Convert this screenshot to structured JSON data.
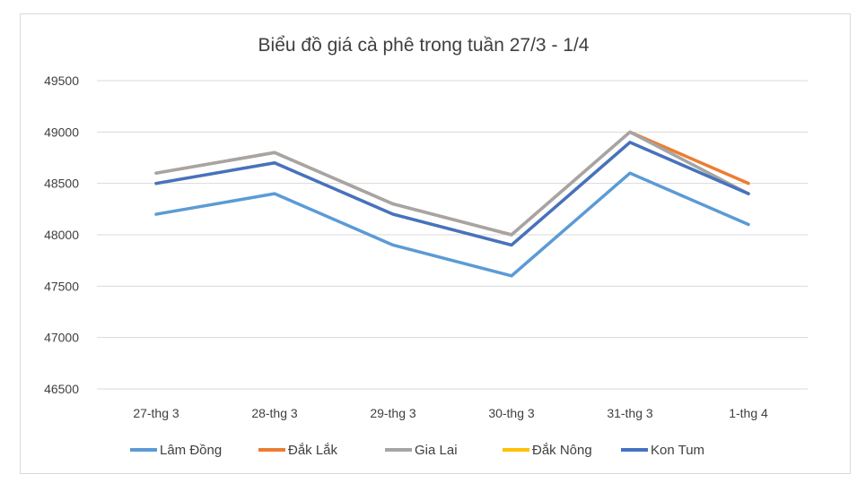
{
  "chart_data": {
    "type": "line",
    "title": "Biểu đồ giá cà phê trong tuần 27/3 - 1/4",
    "categories": [
      "27-thg 3",
      "28-thg 3",
      "29-thg 3",
      "30-thg 3",
      "31-thg 3",
      "1-thg 4"
    ],
    "ylim": [
      46500,
      49500
    ],
    "yticks": [
      46500,
      47000,
      47500,
      48000,
      48500,
      49000,
      49500
    ],
    "grid": true,
    "legend_position": "bottom",
    "series": [
      {
        "name": "Lâm Đồng",
        "color": "#5b9bd5",
        "values": [
          48200,
          48400,
          47900,
          47600,
          48600,
          48100
        ]
      },
      {
        "name": "Đắk Lắk",
        "color": "#ed7d31",
        "values": [
          48600,
          48800,
          48300,
          48000,
          49000,
          48500
        ]
      },
      {
        "name": "Gia Lai",
        "color": "#a5a5a5",
        "values": [
          48600,
          48800,
          48300,
          48000,
          49000,
          48400
        ]
      },
      {
        "name": "Đắk Nông",
        "color": "#ffc000",
        "values": [
          48500,
          48700,
          48200,
          47900,
          48900,
          48400
        ]
      },
      {
        "name": "Kon Tum",
        "color": "#4472c4",
        "values": [
          48500,
          48700,
          48200,
          47900,
          48900,
          48400
        ]
      }
    ]
  }
}
